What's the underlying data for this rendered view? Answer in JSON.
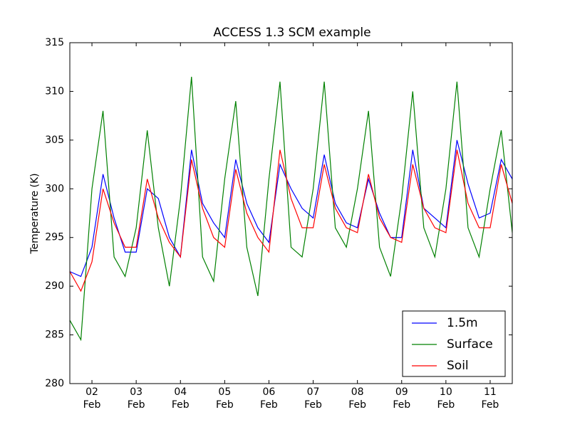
{
  "chart_data": {
    "type": "line",
    "title": "ACCESS 1.3 SCM example",
    "y_label": "Temperature (K)",
    "x": [
      1.5,
      1.75,
      2.0,
      2.25,
      2.5,
      2.75,
      3.0,
      3.25,
      3.5,
      3.75,
      4.0,
      4.25,
      4.5,
      4.75,
      5.0,
      5.25,
      5.5,
      5.75,
      6.0,
      6.25,
      6.5,
      6.75,
      7.0,
      7.25,
      7.5,
      7.75,
      8.0,
      8.25,
      8.5,
      8.75,
      9.0,
      9.25,
      9.5,
      9.75,
      10.0,
      10.25,
      10.5,
      10.75,
      11.0,
      11.25,
      11.5
    ],
    "series": [
      {
        "name": "1.5m",
        "color": "#0000ff",
        "values": [
          291.5,
          291,
          294,
          301.5,
          297,
          293.5,
          293.5,
          300,
          299,
          295,
          293,
          304,
          298.5,
          296.5,
          295,
          303,
          298.5,
          296,
          294.5,
          302.5,
          300,
          298,
          297,
          303.5,
          298.5,
          296.5,
          296,
          301,
          297.5,
          295,
          295,
          304,
          298,
          297,
          296,
          305,
          300.5,
          297,
          297.5,
          303,
          301
        ]
      },
      {
        "name": "Surface",
        "color": "#008000",
        "values": [
          286.5,
          284.5,
          300,
          308,
          293,
          291,
          296,
          306,
          296,
          290,
          299,
          311.5,
          293,
          290.5,
          301,
          309,
          294,
          289,
          301,
          311,
          294,
          293,
          300,
          311,
          296,
          294,
          300,
          308,
          294,
          291,
          299,
          310,
          296,
          293,
          300,
          311,
          296,
          293,
          300,
          306,
          295.5
        ]
      },
      {
        "name": "Soil",
        "color": "#ff0000",
        "values": [
          291.5,
          289.5,
          292.5,
          300,
          296.5,
          294,
          294,
          301,
          297,
          294.5,
          293,
          303,
          298,
          295,
          294,
          302,
          297.5,
          295,
          293.5,
          304,
          299,
          296,
          296,
          302.5,
          298,
          296,
          295.5,
          301.5,
          297,
          295,
          294.5,
          302.5,
          298,
          296,
          295.5,
          304,
          298.5,
          296,
          296,
          302.5,
          298.5
        ]
      }
    ],
    "xlim": [
      1.5,
      11.5
    ],
    "xticks": [
      {
        "value": 2,
        "label": "02\nFeb"
      },
      {
        "value": 3,
        "label": "03\nFeb"
      },
      {
        "value": 4,
        "label": "04\nFeb"
      },
      {
        "value": 5,
        "label": "05\nFeb"
      },
      {
        "value": 6,
        "label": "06\nFeb"
      },
      {
        "value": 7,
        "label": "07\nFeb"
      },
      {
        "value": 8,
        "label": "08\nFeb"
      },
      {
        "value": 9,
        "label": "09\nFeb"
      },
      {
        "value": 10,
        "label": "10\nFeb"
      },
      {
        "value": 11,
        "label": "11\nFeb"
      }
    ],
    "ylim": [
      280,
      315
    ],
    "yticks": [
      280,
      285,
      290,
      295,
      300,
      305,
      310,
      315
    ],
    "legend": "lower right"
  }
}
